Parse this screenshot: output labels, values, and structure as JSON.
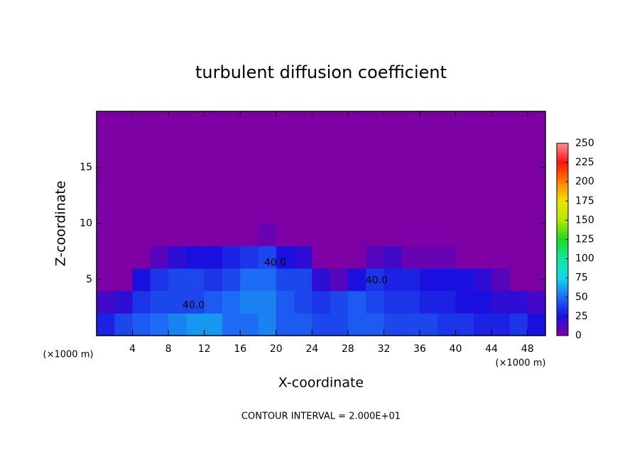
{
  "chart_data": {
    "type": "heatmap",
    "title": "turbulent diffusion coefficient",
    "x_label": "X-coordinate",
    "y_label": "Z-coordinate",
    "x_unit": "(×1000 m)",
    "y_unit": "(×1000 m)",
    "footer": "CONTOUR INTERVAL = 2.000E+01",
    "xlim": [
      0,
      50
    ],
    "ylim": [
      0,
      20
    ],
    "xticks": [
      4,
      8,
      12,
      16,
      20,
      24,
      28,
      32,
      36,
      40,
      44,
      48
    ],
    "yticks": [
      5,
      10,
      15
    ],
    "x": [
      0,
      2,
      4,
      6,
      8,
      10,
      12,
      14,
      16,
      18,
      20,
      22,
      24,
      26,
      28,
      30,
      32,
      34,
      36,
      38,
      40,
      42,
      44,
      46,
      48,
      50
    ],
    "y": [
      0,
      2,
      4,
      6,
      8,
      10,
      20
    ],
    "values": [
      [
        30,
        40,
        45,
        50,
        55,
        60,
        60,
        50,
        50,
        55,
        45,
        45,
        40,
        40,
        45,
        45,
        40,
        40,
        40,
        35,
        35,
        30,
        30,
        35,
        25
      ],
      [
        15,
        20,
        35,
        40,
        40,
        40,
        45,
        50,
        55,
        55,
        45,
        40,
        35,
        40,
        45,
        40,
        35,
        35,
        30,
        30,
        25,
        25,
        20,
        20,
        15
      ],
      [
        0,
        0,
        25,
        35,
        40,
        40,
        35,
        40,
        50,
        50,
        40,
        40,
        20,
        10,
        25,
        35,
        30,
        30,
        25,
        25,
        25,
        20,
        10,
        0,
        0
      ],
      [
        0,
        0,
        0,
        10,
        20,
        25,
        25,
        30,
        35,
        40,
        25,
        20,
        0,
        0,
        0,
        10,
        15,
        5,
        5,
        5,
        0,
        0,
        0,
        0,
        0
      ],
      [
        0,
        0,
        0,
        0,
        0,
        0,
        0,
        0,
        0,
        5,
        0,
        0,
        0,
        0,
        0,
        0,
        0,
        0,
        0,
        0,
        0,
        0,
        0,
        0,
        0
      ],
      [
        0,
        0,
        0,
        0,
        0,
        0,
        0,
        0,
        0,
        0,
        0,
        0,
        0,
        0,
        0,
        0,
        0,
        0,
        0,
        0,
        0,
        0,
        0,
        0,
        0
      ]
    ],
    "clim": [
      0,
      250
    ],
    "cticks": [
      0,
      25,
      50,
      75,
      100,
      125,
      150,
      175,
      200,
      225,
      250
    ],
    "colormap": [
      "#7d00a5",
      "#1a10e0",
      "#1e6cf5",
      "#10d8e8",
      "#10e8a0",
      "#20d820",
      "#b0e800",
      "#f0e000",
      "#ff8000",
      "#ff1010",
      "#ff9090"
    ],
    "annotations": [
      {
        "text": "40.0",
        "x": 10.8,
        "y": 2.7
      },
      {
        "text": "40.0",
        "x": 19.9,
        "y": 6.5
      },
      {
        "text": "40.0",
        "x": 31.2,
        "y": 4.9
      }
    ]
  }
}
